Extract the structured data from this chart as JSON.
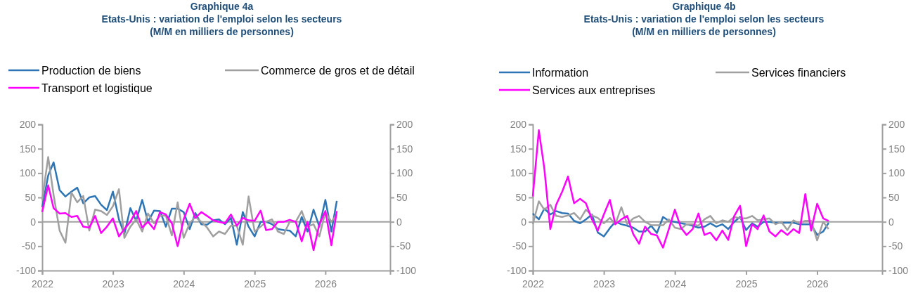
{
  "chart_data": [
    {
      "type": "line",
      "title": "Graphique 4a",
      "subtitle": "Etats-Unis : variation de l'emploi selon les secteurs\n(M/M en milliers de personnes)",
      "x": [
        "2022-01",
        "2022-02",
        "2022-03",
        "2022-04",
        "2022-05",
        "2022-06",
        "2022-07",
        "2022-08",
        "2022-09",
        "2022-10",
        "2022-11",
        "2022-12",
        "2023-01",
        "2023-02",
        "2023-03",
        "2023-04",
        "2023-05",
        "2023-06",
        "2023-07",
        "2023-08",
        "2023-09",
        "2023-10",
        "2023-11",
        "2023-12",
        "2024-01",
        "2024-02",
        "2024-03",
        "2024-04",
        "2024-05",
        "2024-06",
        "2024-07",
        "2024-08",
        "2024-09",
        "2024-10",
        "2024-11",
        "2024-12",
        "2025-01",
        "2025-02",
        "2025-03",
        "2025-04",
        "2025-05",
        "2025-06",
        "2025-07",
        "2025-08",
        "2025-09",
        "2025-10",
        "2025-11",
        "2025-12",
        "2026-01",
        "2026-02",
        "2026-03"
      ],
      "series": [
        {
          "name": "Production de biens",
          "color": "#2e75b6",
          "values": [
            30,
            95,
            122,
            65,
            52,
            62,
            70,
            38,
            50,
            53,
            35,
            24,
            62,
            5,
            -25,
            28,
            2,
            45,
            0,
            23,
            22,
            -10,
            27,
            27,
            20,
            -15,
            18,
            -5,
            -6,
            3,
            5,
            -5,
            8,
            -47,
            20,
            -10,
            -30,
            0,
            0,
            -5,
            -15,
            -17,
            -18,
            -30,
            10,
            -20,
            25,
            -10,
            45,
            -20,
            43
          ]
        },
        {
          "name": "Commerce de gros et de détail",
          "color": "#a0a0a0",
          "values": [
            45,
            133,
            55,
            -18,
            -43,
            60,
            40,
            53,
            -18,
            25,
            22,
            14,
            32,
            67,
            -33,
            -10,
            5,
            -20,
            17,
            -3,
            12,
            13,
            -28,
            40,
            -33,
            -3,
            10,
            0,
            -12,
            -30,
            -20,
            -25,
            -8,
            -8,
            -47,
            52,
            -20,
            -10,
            0,
            5,
            -20,
            -25,
            0,
            0,
            22,
            -10,
            -5,
            -30,
            20,
            0,
            15
          ]
        },
        {
          "name": "Transport et logistique",
          "color": "#ff00ff",
          "values": [
            20,
            75,
            28,
            17,
            18,
            10,
            12,
            -10,
            -12,
            12,
            -23,
            -10,
            7,
            -30,
            -15,
            0,
            22,
            -12,
            0,
            -15,
            20,
            15,
            -3,
            -50,
            5,
            37,
            8,
            20,
            12,
            3,
            0,
            -3,
            15,
            -8,
            8,
            3,
            2,
            23,
            -17,
            -15,
            0,
            0,
            4,
            0,
            -40,
            0,
            -58,
            -5,
            22,
            -48,
            22
          ]
        }
      ],
      "xlim": [
        "2022-01",
        "2026-12"
      ],
      "xticks": [
        "2022",
        "2023",
        "2024",
        "2025",
        "2026"
      ],
      "ylim": [
        -100,
        200
      ],
      "yticks": [
        -100,
        -50,
        0,
        50,
        100,
        150,
        200
      ],
      "y2lim": [
        -100,
        200
      ],
      "y2ticks": [
        -100,
        -50,
        0,
        50,
        100,
        150,
        200
      ],
      "ref_lines": [
        {
          "axis": "y",
          "value": 0,
          "color": "#a0a0a0"
        }
      ],
      "grid": false,
      "legend": "top",
      "marker": "none",
      "line_style": "solid"
    },
    {
      "type": "line",
      "title": "Graphique 4b",
      "subtitle": "Etats-Unis : variation de l'emploi selon les secteurs\n(M/M en milliers de personnes)",
      "x": [
        "2022-01",
        "2022-02",
        "2022-03",
        "2022-04",
        "2022-05",
        "2022-06",
        "2022-07",
        "2022-08",
        "2022-09",
        "2022-10",
        "2022-11",
        "2022-12",
        "2023-01",
        "2023-02",
        "2023-03",
        "2023-04",
        "2023-05",
        "2023-06",
        "2023-07",
        "2023-08",
        "2023-09",
        "2023-10",
        "2023-11",
        "2023-12",
        "2024-01",
        "2024-02",
        "2024-03",
        "2024-04",
        "2024-05",
        "2024-06",
        "2024-07",
        "2024-08",
        "2024-09",
        "2024-10",
        "2024-11",
        "2024-12",
        "2025-01",
        "2025-02",
        "2025-03",
        "2025-04",
        "2025-05",
        "2025-06",
        "2025-07",
        "2025-08",
        "2025-09",
        "2025-10",
        "2025-11",
        "2025-12",
        "2026-01",
        "2026-02",
        "2026-03"
      ],
      "series": [
        {
          "name": "Information",
          "color": "#2e75b6",
          "values": [
            17,
            5,
            27,
            15,
            22,
            18,
            17,
            2,
            -3,
            5,
            15,
            -22,
            -30,
            -13,
            0,
            -5,
            -8,
            -12,
            -20,
            -20,
            -8,
            -23,
            10,
            2,
            0,
            -3,
            -5,
            -8,
            -12,
            -10,
            -3,
            -10,
            -5,
            -15,
            0,
            10,
            -17,
            -3,
            -10,
            0,
            0,
            -2,
            -2,
            -2,
            -2,
            -5,
            -5,
            -5,
            -27,
            -20,
            -2
          ]
        },
        {
          "name": "Services financiers",
          "color": "#a0a0a0",
          "values": [
            -5,
            42,
            25,
            35,
            12,
            10,
            13,
            18,
            5,
            25,
            13,
            8,
            -3,
            8,
            -5,
            30,
            -5,
            7,
            12,
            0,
            -7,
            -7,
            -7,
            5,
            -12,
            -15,
            -5,
            -5,
            -8,
            5,
            12,
            -3,
            3,
            0,
            10,
            7,
            7,
            12,
            3,
            5,
            7,
            -5,
            0,
            -17,
            3,
            -3,
            2,
            2,
            -38,
            0,
            -15
          ]
        },
        {
          "name": "Services aux entreprises",
          "color": "#ff00ff",
          "values": [
            52,
            188,
            110,
            -15,
            35,
            62,
            93,
            38,
            47,
            38,
            5,
            -18,
            15,
            45,
            -5,
            5,
            12,
            -25,
            -45,
            -10,
            -25,
            -28,
            -53,
            -15,
            25,
            -12,
            -27,
            -15,
            17,
            -27,
            -22,
            -38,
            -18,
            -37,
            12,
            33,
            -50,
            -5,
            -15,
            13,
            -20,
            -30,
            -17,
            -27,
            -15,
            -23,
            57,
            -18,
            37,
            7,
            2
          ]
        }
      ],
      "xlim": [
        "2022-01",
        "2026-12"
      ],
      "xticks": [
        "2022",
        "2023",
        "2024",
        "2025",
        "2026"
      ],
      "ylim": [
        -100,
        200
      ],
      "yticks": [
        -100,
        -50,
        0,
        50,
        100,
        150,
        200
      ],
      "y2lim": [
        -100,
        200
      ],
      "y2ticks": [
        -100,
        -50,
        0,
        50,
        100,
        150,
        200
      ],
      "ref_lines": [
        {
          "axis": "y",
          "value": 0,
          "color": "#a0a0a0"
        }
      ],
      "grid": false,
      "legend": "top",
      "marker": "none",
      "line_style": "solid"
    }
  ]
}
